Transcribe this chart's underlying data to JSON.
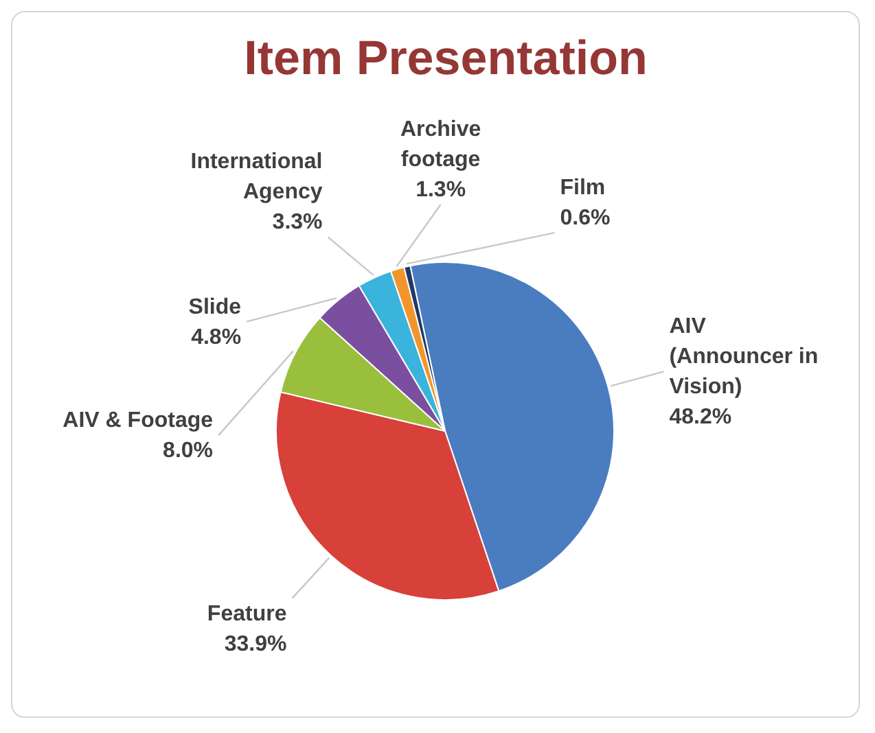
{
  "chart_data": {
    "type": "pie",
    "title": "Item Presentation",
    "categories": [
      "AIV (Announcer in Vision)",
      "Feature",
      "AIV & Footage",
      "Slide",
      "International Agency",
      "Archive footage",
      "Film"
    ],
    "values": [
      48.2,
      33.9,
      8.0,
      4.8,
      3.3,
      1.3,
      0.6
    ],
    "colors": [
      "#4a7cc0",
      "#d8403a",
      "#99bf3d",
      "#7b4fa0",
      "#3ab4dc",
      "#f2962b",
      "#1f3a66"
    ],
    "value_labels": [
      "48.2%",
      "33.9%",
      "8.0%",
      "4.8%",
      "3.3%",
      "1.3%",
      "0.6%"
    ]
  }
}
